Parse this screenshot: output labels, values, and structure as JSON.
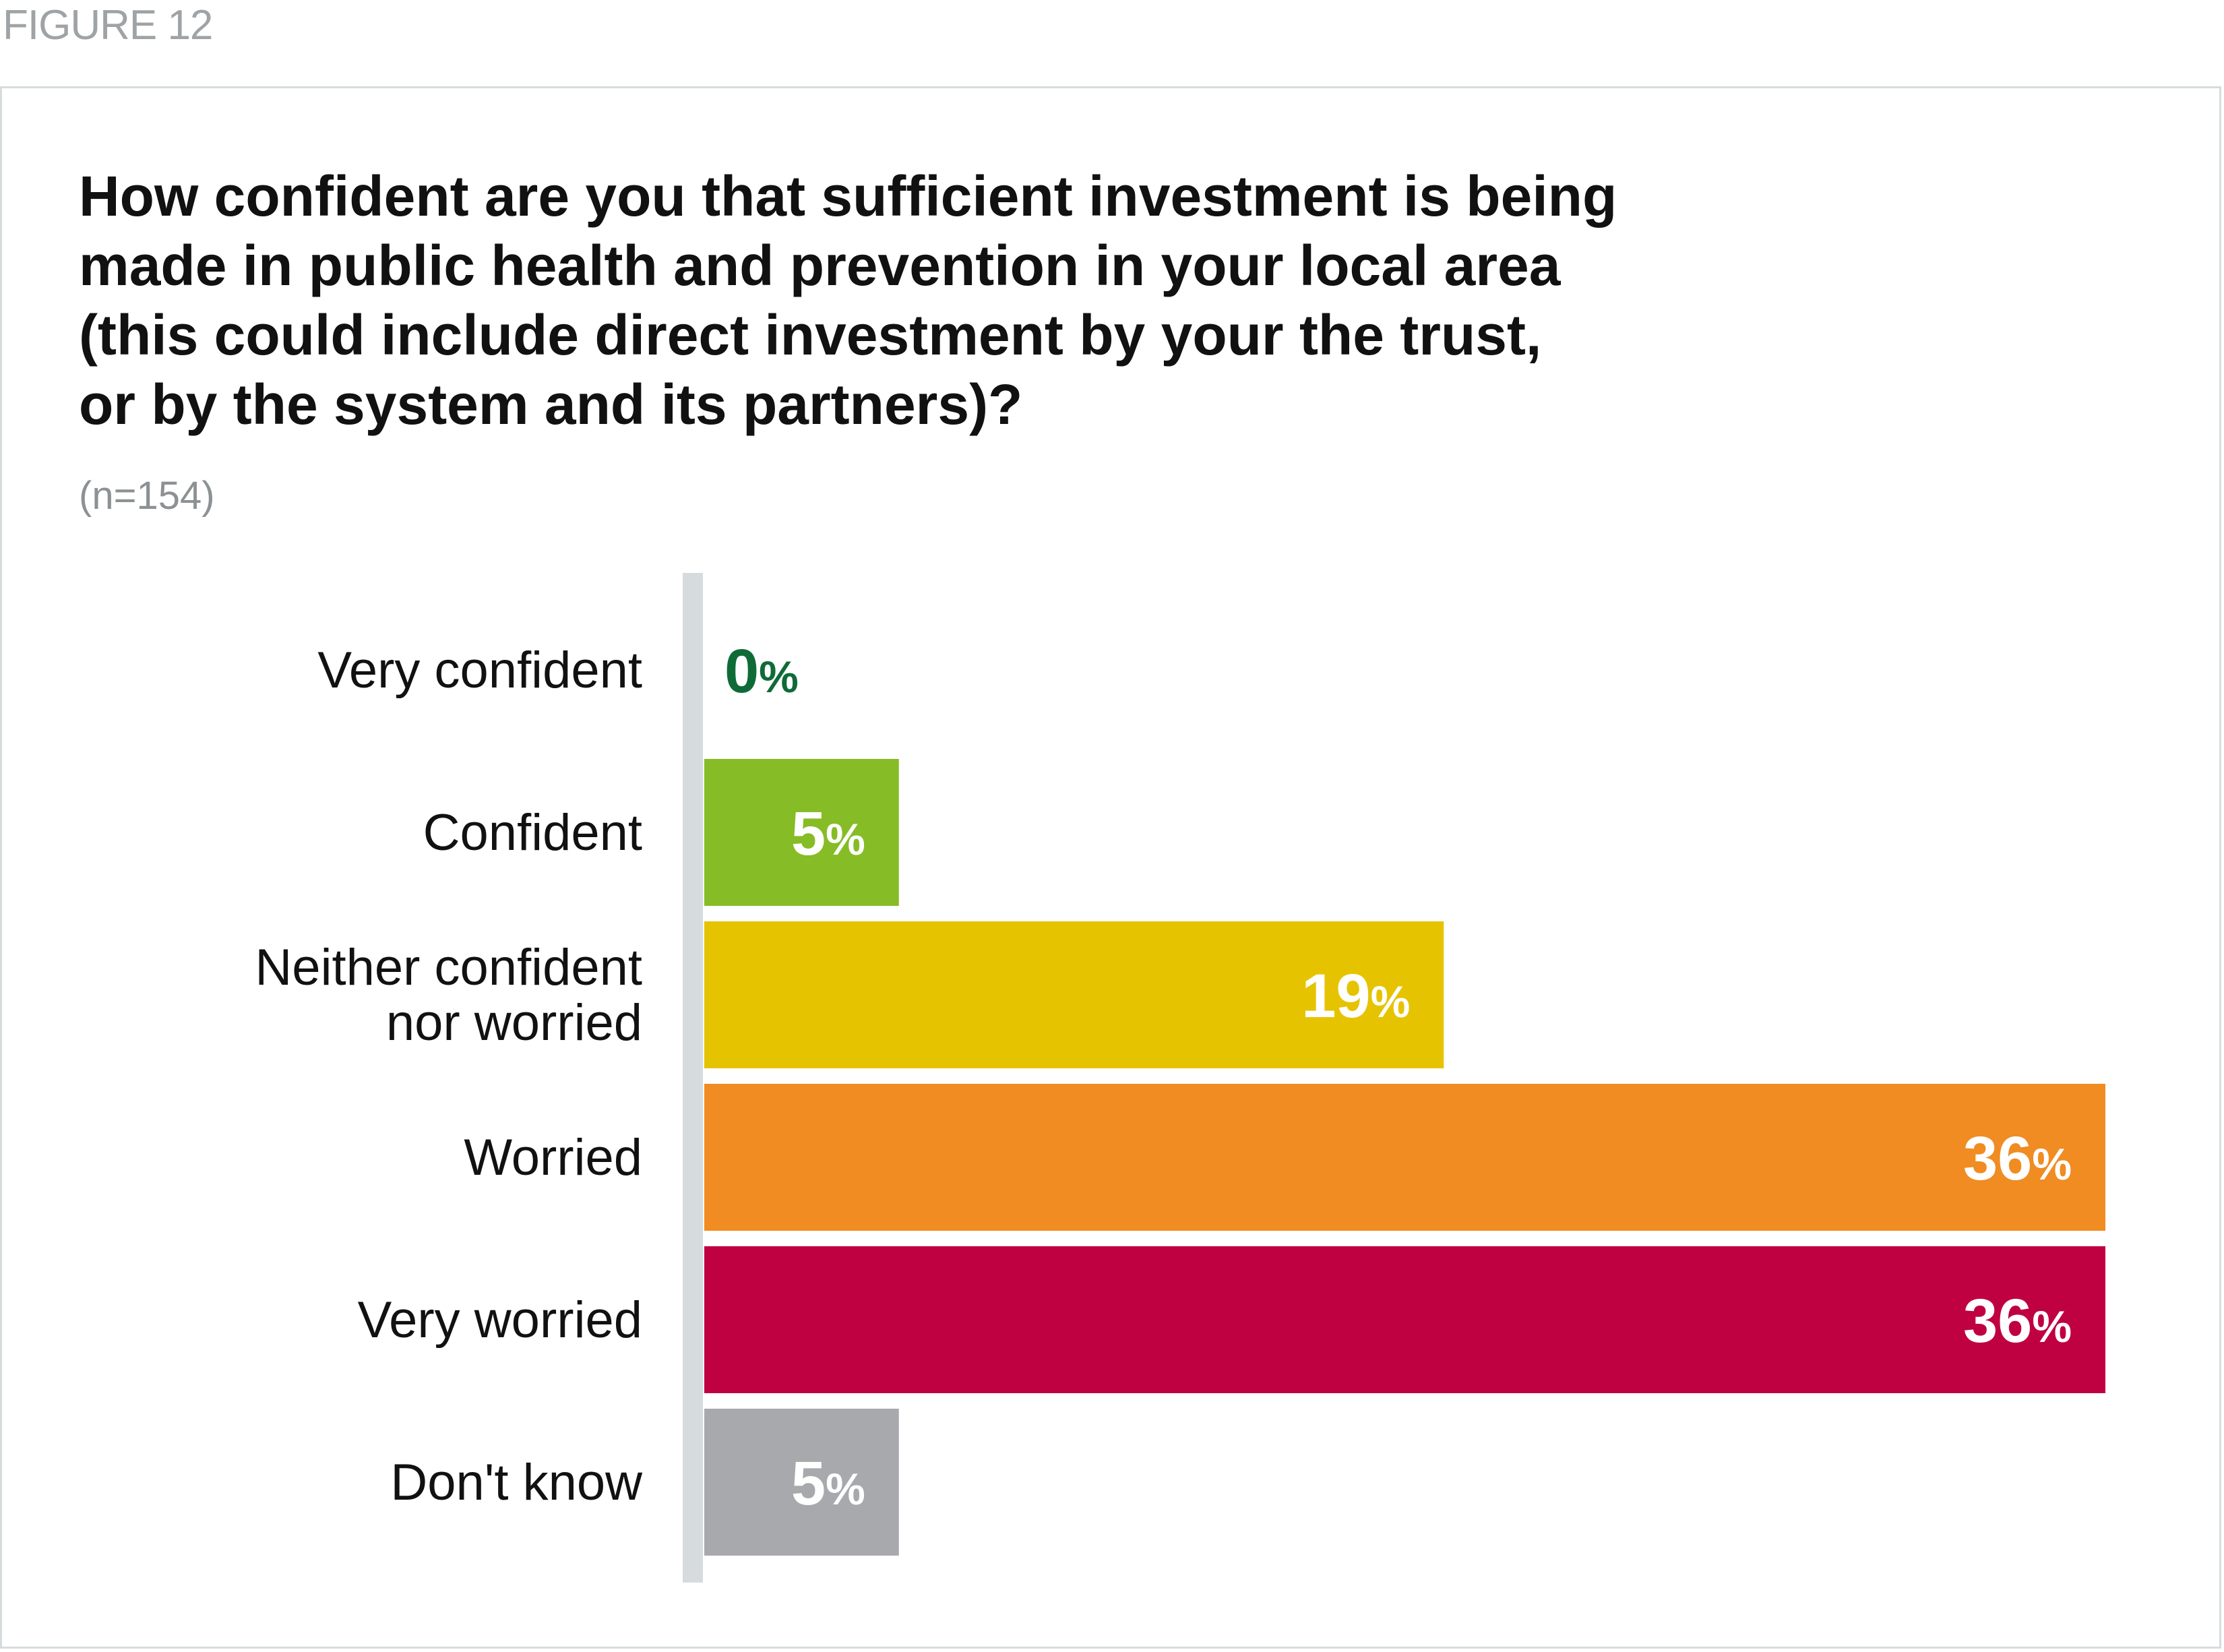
{
  "figure_label": "FIGURE 12",
  "title_lines": [
    "How confident are you that sufficient investment is being",
    "made in public health and prevention in your local area",
    "(this could include direct investment by your the trust,",
    "or by the system and its partners)?"
  ],
  "sample_size": "(n=154)",
  "colors": {
    "axis": "#d6dcdd",
    "zero_label": "#0e6b38",
    "bar_label": "#ffffff"
  },
  "chart_data": {
    "type": "bar",
    "orientation": "horizontal",
    "title": "How confident are you that sufficient investment is being made in public health and prevention in your local area (this could include direct investment by your the trust, or by the system and its partners)?",
    "categories": [
      [
        "Very confident"
      ],
      [
        "Confident"
      ],
      [
        "Neither confident",
        "nor worried"
      ],
      [
        "Worried"
      ],
      [
        "Very worried"
      ],
      [
        "Don't know"
      ]
    ],
    "values": [
      0,
      5,
      19,
      36,
      36,
      5
    ],
    "unit": "%",
    "colors": [
      "#0e6b38",
      "#86bc25",
      "#e6c300",
      "#f08c21",
      "#bf0041",
      "#a7a9ac"
    ],
    "xlim": [
      0,
      36
    ],
    "grid": false,
    "legend": "none"
  }
}
